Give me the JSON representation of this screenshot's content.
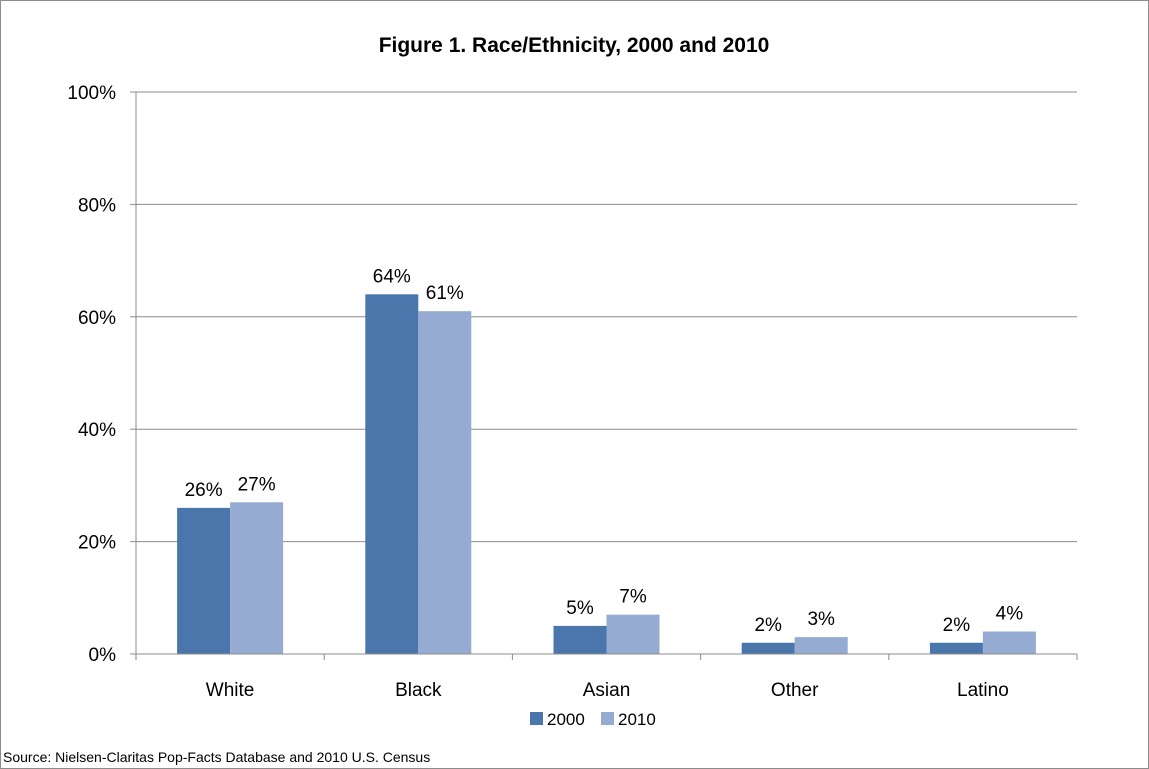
{
  "colors": {
    "series_2000": "#4A76AB",
    "series_2010": "#96ABD1",
    "gridline": "#8C8C8C",
    "axis": "#8C8C8C",
    "frame_border": "#8C8C8C"
  },
  "chart_data": {
    "type": "bar",
    "title": "Figure 1. Race/Ethnicity, 2000 and 2010",
    "xlabel": "",
    "ylabel": "",
    "categories": [
      "White",
      "Black",
      "Asian",
      "Other",
      "Latino"
    ],
    "series": [
      {
        "name": "2000",
        "values": [
          26,
          64,
          5,
          2,
          2
        ],
        "labels": [
          "26%",
          "64%",
          "5%",
          "2%",
          "2%"
        ]
      },
      {
        "name": "2010",
        "values": [
          27,
          61,
          7,
          3,
          4
        ],
        "labels": [
          "27%",
          "61%",
          "7%",
          "3%",
          "4%"
        ]
      }
    ],
    "ylim": [
      0,
      100
    ],
    "yticks": [
      0,
      20,
      40,
      60,
      80,
      100
    ],
    "ytick_labels": [
      "0%",
      "20%",
      "40%",
      "60%",
      "80%",
      "100%"
    ],
    "grid": true,
    "legend_position": "bottom",
    "source": "Source: Nielsen-Claritas Pop-Facts Database and 2010 U.S. Census"
  }
}
